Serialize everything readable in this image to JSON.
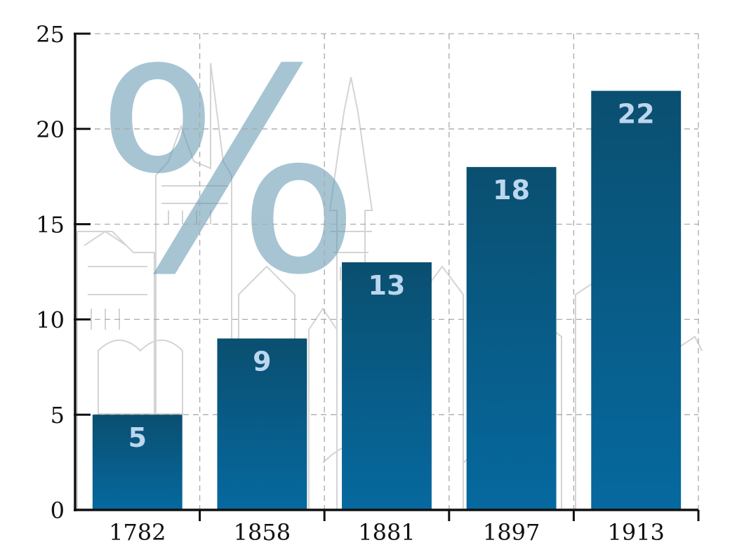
{
  "watermark": {
    "symbol": "%",
    "color": "#5f93ae"
  },
  "colors": {
    "bar_top": "#0a4f70",
    "bar_bottom": "#06699f",
    "bar_label": "#bcd6ee",
    "grid": "#aaaaaa",
    "axis": "#111111"
  },
  "chart_data": {
    "type": "bar",
    "categories": [
      "1782",
      "1858",
      "1881",
      "1897",
      "1913"
    ],
    "values": [
      5,
      9,
      13,
      18,
      22
    ],
    "data_labels": [
      "5",
      "9",
      "13",
      "18",
      "22"
    ],
    "yticks": [
      "0",
      "5",
      "10",
      "15",
      "20",
      "25"
    ],
    "ylim": [
      0,
      25
    ],
    "title": "",
    "xlabel": "",
    "ylabel": "",
    "grid": true,
    "legend": "none"
  }
}
